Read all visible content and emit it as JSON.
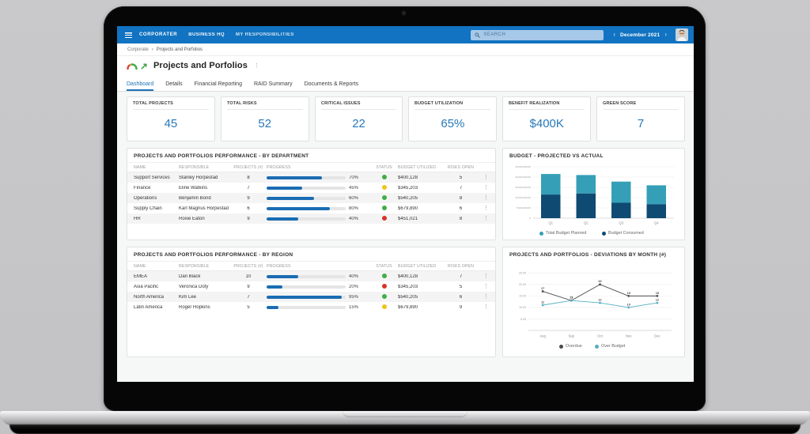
{
  "topbar": {
    "logo": "CORPORATER",
    "nav": [
      {
        "label": "BUSINESS HQ"
      },
      {
        "label": "MY RESPONSIBILITIES"
      }
    ],
    "search_placeholder": "SEARCH",
    "period": "December 2021"
  },
  "breadcrumb": {
    "items": [
      "Corporate",
      "Projects and Porfolios"
    ]
  },
  "page": {
    "title": "Projects and Porfolios"
  },
  "tabs": [
    {
      "label": "Dashboard",
      "active": true
    },
    {
      "label": "Details",
      "active": false
    },
    {
      "label": "Financial Reporting",
      "active": false
    },
    {
      "label": "RAID Summary",
      "active": false
    },
    {
      "label": "Documents & Reports",
      "active": false
    }
  ],
  "kpis": [
    {
      "label": "TOTAL PROJECTS",
      "value": "45"
    },
    {
      "label": "TOTAL RISKS",
      "value": "52"
    },
    {
      "label": "CRITICAL ISSUES",
      "value": "22"
    },
    {
      "label": "BUDGET UTILIZATION",
      "value": "65%"
    },
    {
      "label": "BENEFIT REALIZATION",
      "value": "$400K"
    },
    {
      "label": "GREEN SCORE",
      "value": "7"
    }
  ],
  "tables": [
    {
      "title": "PROJECTS AND PORTFOLIOS PERFORMANCE - BY DEPARTMENT",
      "columns": [
        "NAME",
        "RESPONSIBLE",
        "PROJECTS (#)",
        "PROGRESS",
        "STATUS",
        "BUDGET UTILIZED",
        "RISKS OPEN"
      ],
      "rows": [
        {
          "name": "Support Services",
          "responsible": "Stanley Horpestad",
          "projects": "8",
          "progress_pct": 70,
          "progress_label": "70%",
          "status": "green",
          "budget": "$400,128",
          "risks": "5"
        },
        {
          "name": "Finance",
          "responsible": "Eline Watkins",
          "projects": "7",
          "progress_pct": 45,
          "progress_label": "45%",
          "status": "yellow",
          "budget": "$345,203",
          "risks": "7"
        },
        {
          "name": "Operations",
          "responsible": "Benjamin Bond",
          "projects": "9",
          "progress_pct": 60,
          "progress_label": "60%",
          "status": "green",
          "budget": "$540,205",
          "risks": "8"
        },
        {
          "name": "Supply Chain",
          "responsible": "Karl Magnus Horpestad",
          "projects": "6",
          "progress_pct": 80,
          "progress_label": "80%",
          "status": "green",
          "budget": "$679,890",
          "risks": "6"
        },
        {
          "name": "HR",
          "responsible": "Roxie Eaton",
          "projects": "9",
          "progress_pct": 40,
          "progress_label": "40%",
          "status": "red",
          "budget": "$451,021",
          "risks": "8"
        }
      ]
    },
    {
      "title": "PROJECTS AND PORTFOLIOS PERFORMANCE - BY REGION",
      "columns": [
        "NAME",
        "RESPONSIBLE",
        "PROJECTS (#)",
        "PROGRESS",
        "STATUS",
        "BUDGET UTILIZED",
        "RISKS OPEN"
      ],
      "rows": [
        {
          "name": "EMEA",
          "responsible": "Dan Black",
          "projects": "10",
          "progress_pct": 40,
          "progress_label": "40%",
          "status": "green",
          "budget": "$400,128",
          "risks": "7"
        },
        {
          "name": "Asia Pacific",
          "responsible": "Veronica Doty",
          "projects": "9",
          "progress_pct": 20,
          "progress_label": "20%",
          "status": "red",
          "budget": "$345,203",
          "risks": "5"
        },
        {
          "name": "North America",
          "responsible": "Kim Lee",
          "projects": "7",
          "progress_pct": 95,
          "progress_label": "95%",
          "status": "green",
          "budget": "$540,205",
          "risks": "6"
        },
        {
          "name": "Latin America",
          "responsible": "Roger Hopkins",
          "projects": "5",
          "progress_pct": 15,
          "progress_label": "15%",
          "status": "yellow",
          "budget": "$679,890",
          "risks": "9"
        }
      ]
    }
  ],
  "chart_data": [
    {
      "type": "bar",
      "stacked": true,
      "title": "BUDGET - PROJECTED VS ACTUAL",
      "categories": [
        "Q1",
        "Q2",
        "Q3",
        "Q4"
      ],
      "series": [
        {
          "name": "Total Budget Planned",
          "color": "#359fb7",
          "values": [
            21500000,
            21000000,
            17800000,
            16000000
          ]
        },
        {
          "name": "Budget Consumed",
          "color": "#0e4a72",
          "values": [
            11500000,
            12000000,
            7500000,
            6800000
          ]
        }
      ],
      "ylim": [
        0,
        25000000
      ],
      "ytick_values": [
        25000000,
        20000000,
        15000000,
        10000000,
        5000000,
        0
      ],
      "ytick_labels": [
        "25,000,000.00",
        "20,000,000.00",
        "15,000,000.00",
        "10,000,000.00",
        "5,000,000.00",
        "0"
      ],
      "grid": true,
      "legend_position": "bottom"
    },
    {
      "type": "line",
      "title": "PROJECTS AND PORTFOLIOS - DEVIATIONS BY MONTH (#)",
      "x": [
        "Aug",
        "Sep",
        "Oct",
        "Nov",
        "Dec"
      ],
      "series": [
        {
          "name": "Overdue",
          "color": "#4a4a4a",
          "values": [
            17,
            13,
            20,
            15,
            15
          ]
        },
        {
          "name": "Over Budget",
          "color": "#56aec4",
          "values": [
            11,
            13,
            12,
            10,
            12
          ]
        }
      ],
      "ylim": [
        0,
        27.5
      ],
      "ytick_values": [
        25,
        20,
        15,
        10,
        5
      ],
      "ytick_labels": [
        "25.00",
        "20.00",
        "15.00",
        "10.00",
        "5.00"
      ],
      "point_labels": true,
      "grid": true,
      "legend_position": "bottom"
    }
  ],
  "status_colors": {
    "green": "#3fae46",
    "yellow": "#efc319",
    "red": "#d8332a"
  },
  "icons": {
    "menu": "hamburger-lines",
    "search": "magnifier",
    "prev": "‹",
    "next": "›",
    "kebab": "⋮",
    "breadcrumb_separator": "›",
    "gauge": "speedometer",
    "trend": "up-right-arrow"
  }
}
